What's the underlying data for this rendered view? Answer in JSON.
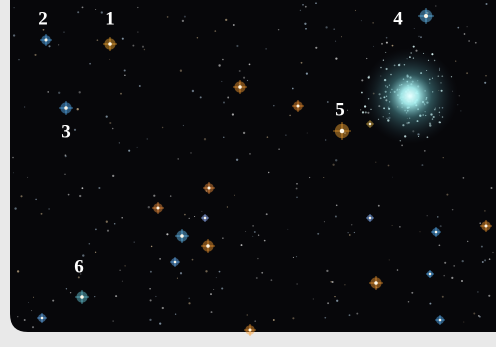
{
  "labels": [
    "1",
    "2",
    "3",
    "4",
    "5",
    "6"
  ]
}
